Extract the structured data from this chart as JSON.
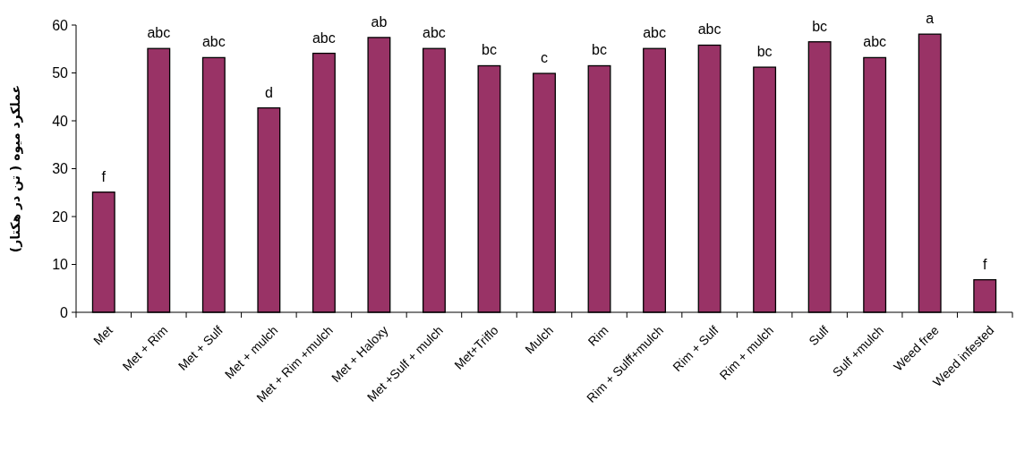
{
  "chart_data": {
    "type": "bar",
    "ylabel": "عملکرد میوه ( تن در هکتار)",
    "categories": [
      "Met",
      "Met + Rim",
      "Met + Sulf",
      "Met + mulch",
      "Met + Rim +mulch",
      "Met + Haloxy",
      "Met +Sulf + mulch",
      "Met+Triflo",
      "Mulch",
      "Rim",
      "Rim + Sulff+mulch",
      "Rim + Sulf",
      "Rim + mulch",
      "Sulf",
      "Sulf +mulch",
      "Weed free",
      "Weed infested"
    ],
    "values": [
      25.1,
      55.1,
      53.2,
      42.7,
      54.1,
      57.4,
      55.1,
      51.5,
      49.9,
      51.5,
      55.1,
      55.8,
      51.2,
      56.5,
      53.2,
      58.1,
      6.8
    ],
    "color": "#993366",
    "ylim": [
      0,
      60
    ],
    "yticks": [
      0,
      10,
      20,
      30,
      40,
      50,
      60
    ],
    "grid": false,
    "annotations": [
      {
        "text": "f",
        "x": "Met",
        "y": 25.1
      },
      {
        "text": "abc",
        "x": "Met + Rim",
        "y": 55.1
      },
      {
        "text": "abc",
        "x": "Met + Sulf",
        "y": 53.2
      },
      {
        "text": "d",
        "x": "Met + mulch",
        "y": 42.7
      },
      {
        "text": "abc",
        "x": "Met + Rim +mulch",
        "y": 54.1
      },
      {
        "text": "ab",
        "x": "Met + Haloxy",
        "y": 57.4
      },
      {
        "text": "abc",
        "x": "Met +Sulf + mulch",
        "y": 55.1
      },
      {
        "text": "bc",
        "x": "Met+Triflo",
        "y": 51.5
      },
      {
        "text": "c",
        "x": "Mulch",
        "y": 49.9
      },
      {
        "text": "bc",
        "x": "Rim",
        "y": 51.5
      },
      {
        "text": "abc",
        "x": "Rim + Sulff+mulch",
        "y": 55.1
      },
      {
        "text": "abc",
        "x": "Rim + Sulf",
        "y": 55.8
      },
      {
        "text": "bc",
        "x": "Rim + mulch",
        "y": 51.2
      },
      {
        "text": "bc",
        "x": "Sulf",
        "y": 56.5
      },
      {
        "text": "abc",
        "x": "Sulf +mulch",
        "y": 53.2
      },
      {
        "text": "a",
        "x": "Weed free",
        "y": 58.1
      },
      {
        "text": "f",
        "x": "Weed infested",
        "y": 6.8
      }
    ]
  }
}
